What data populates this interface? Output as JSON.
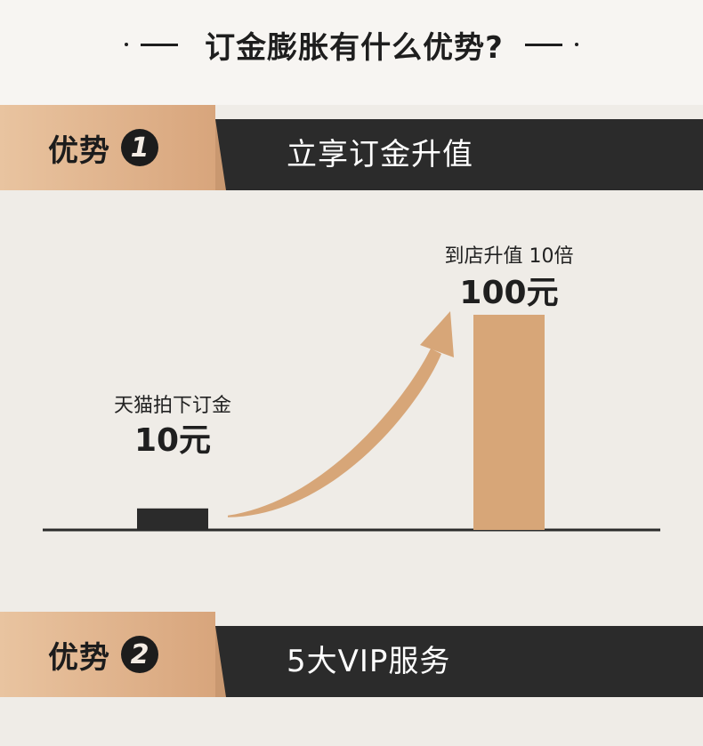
{
  "heading": {
    "title": "订金膨胀有什么优势?"
  },
  "sections": [
    {
      "label": "优势",
      "number": "1",
      "title": "立享订金升值"
    },
    {
      "label": "优势",
      "number": "2",
      "title": "5大VIP服务"
    }
  ],
  "chart_data": {
    "type": "bar",
    "categories": [
      "天猫拍下订金",
      "到店升值 10倍"
    ],
    "values": [
      10,
      100
    ],
    "value_labels": [
      "10元",
      "100元"
    ],
    "colors": [
      "#2b2b2b",
      "#d7a678"
    ],
    "arrow_color": "#d7a678",
    "title": "",
    "xlabel": "",
    "ylabel": ""
  }
}
